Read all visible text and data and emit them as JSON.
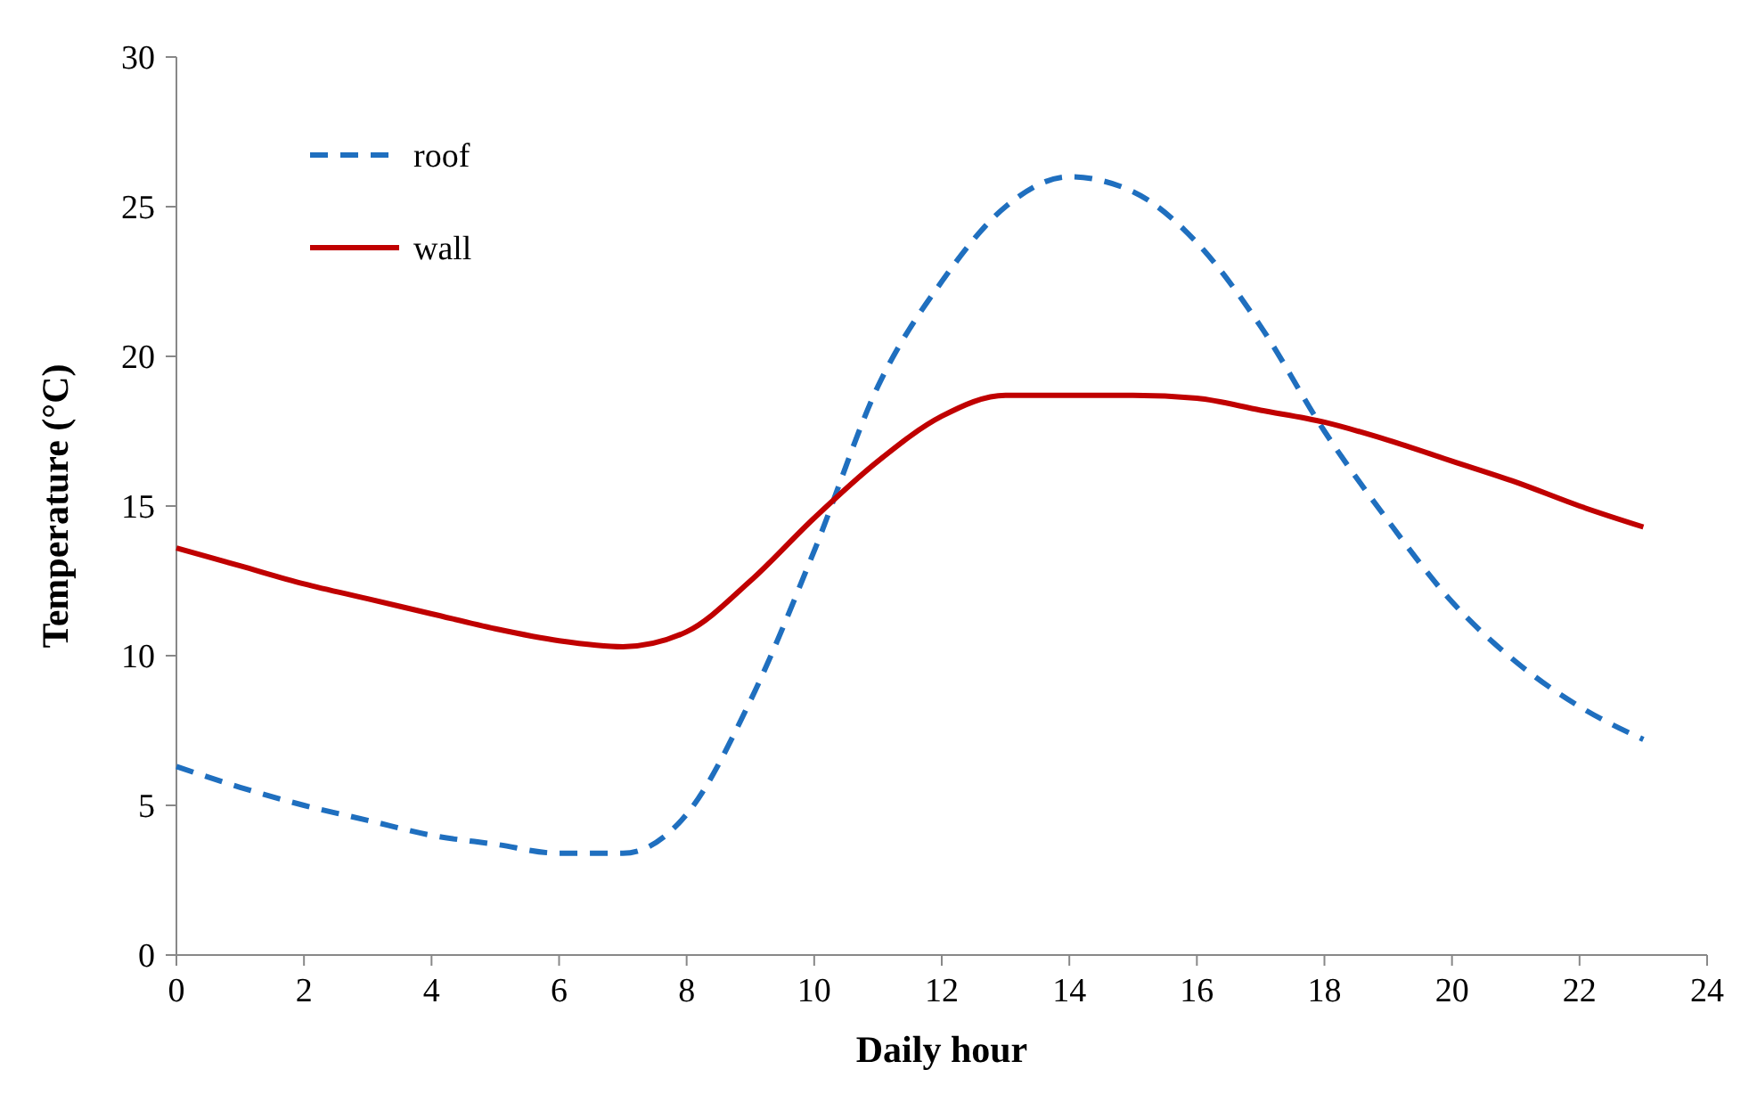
{
  "chart_data": {
    "type": "line",
    "xlabel": "Daily hour",
    "ylabel": "Temperature (°C)",
    "x": [
      0,
      1,
      2,
      3,
      4,
      5,
      6,
      7,
      8,
      9,
      10,
      11,
      12,
      13,
      14,
      15,
      16,
      17,
      18,
      19,
      20,
      21,
      22,
      23
    ],
    "series": [
      {
        "name": "roof",
        "color": "#1f6fbf",
        "line_style": "dashed",
        "values": [
          6.3,
          5.6,
          5.0,
          4.5,
          4.0,
          3.7,
          3.4,
          3.4,
          4.7,
          8.5,
          13.5,
          19,
          22.5,
          25,
          26,
          25.5,
          23.8,
          21,
          17.5,
          14.5,
          11.8,
          9.8,
          8.3,
          7.2
        ]
      },
      {
        "name": "wall",
        "color": "#c00000",
        "line_style": "solid",
        "values": [
          13.6,
          13.0,
          12.4,
          11.9,
          11.4,
          10.9,
          10.5,
          10.3,
          10.8,
          12.5,
          14.6,
          16.5,
          18,
          18.7,
          18.7,
          18.7,
          18.6,
          18.2,
          17.8,
          17.2,
          16.5,
          15.8,
          15.0,
          14.3
        ]
      }
    ],
    "xlim": [
      0,
      24
    ],
    "xticks": [
      0,
      2,
      4,
      6,
      8,
      10,
      12,
      14,
      16,
      18,
      20,
      22,
      24
    ],
    "ylim": [
      0,
      30
    ],
    "yticks": [
      0,
      5,
      10,
      15,
      20,
      25,
      30
    ],
    "grid": false,
    "legend": "top left",
    "marker": "none"
  }
}
